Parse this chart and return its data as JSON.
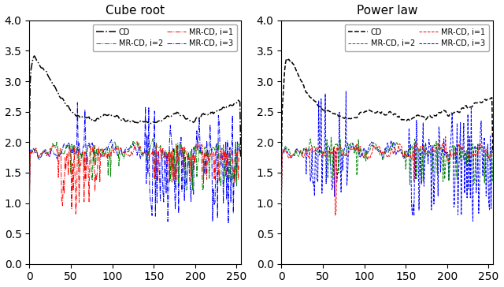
{
  "title_left": "Cube root",
  "title_right": "Power law",
  "xlim": [
    0,
    255
  ],
  "ylim": [
    0.0,
    4.0
  ],
  "yticks": [
    0.0,
    0.5,
    1.0,
    1.5,
    2.0,
    2.5,
    3.0,
    3.5,
    4.0
  ],
  "xticks": [
    0,
    50,
    100,
    150,
    200,
    250
  ],
  "figsize": [
    6.4,
    3.64
  ],
  "dpi": 100
}
